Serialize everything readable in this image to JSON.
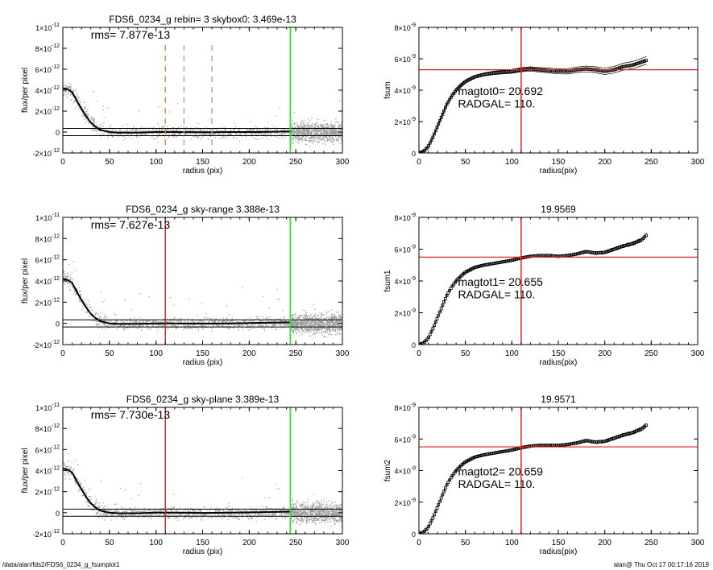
{
  "footer": {
    "path": "/data/alan/fds2/FDS6_0234_g_fsumplot1",
    "stamp": "alan@  Thu Oct 17 00:17:16 2019"
  },
  "colors": {
    "points": "#9a9a9a",
    "profile": "#000000",
    "red": "#dd2222",
    "green": "#33dd33",
    "orange": "#ee8822",
    "dash": "#aaaaaa"
  },
  "chart_data": [
    {
      "type": "scatter",
      "title": "FDS6_0234_g rebin= 3    skybox0:  3.469e-13",
      "annotation": "rms= 7.877e-13",
      "xlabel": "radius (pix)",
      "ylabel": "flux/per pixel",
      "xlim": [
        0,
        300
      ],
      "ylim": [
        -2e-12,
        1e-11
      ],
      "x_ticks": [
        "0",
        "50",
        "100",
        "150",
        "200",
        "250",
        "300"
      ],
      "y_ticks": [
        {
          "v": -2e-12,
          "m": "-2×10",
          "e": "-12"
        },
        {
          "v": 0,
          "m": "0",
          "e": ""
        },
        {
          "v": 2e-12,
          "m": "2×10",
          "e": "-12"
        },
        {
          "v": 4e-12,
          "m": "4×10",
          "e": "-12"
        },
        {
          "v": 6e-12,
          "m": "6×10",
          "e": "-12"
        },
        {
          "v": 8e-12,
          "m": "8×10",
          "e": "-12"
        },
        {
          "v": 1e-11,
          "m": "1×10",
          "e": "-11"
        }
      ],
      "profile": {
        "x": [
          0,
          5,
          10,
          15,
          20,
          25,
          30,
          35,
          40,
          45,
          50,
          60,
          80,
          100,
          120,
          150,
          180,
          210,
          245
        ],
        "y": [
          4.2e-12,
          4.1e-12,
          3.8e-12,
          3e-12,
          2.2e-12,
          1.5e-12,
          9e-13,
          5e-13,
          2e-13,
          1e-13,
          0.0,
          -5e-14,
          -5e-14,
          0.0,
          0.0,
          -2e-14,
          0.0,
          0.0,
          5e-14
        ]
      },
      "hlines": [
        3.469e-13,
        -3.469e-13
      ],
      "vlines": [
        {
          "x": 244,
          "color": "green"
        },
        {
          "x": 110,
          "color": "orange",
          "style": "dashed"
        },
        {
          "x": 130,
          "color": "dash",
          "style": "dashed"
        },
        {
          "x": 160,
          "color": "dash",
          "style": "dashed"
        }
      ]
    },
    {
      "type": "line",
      "title": "",
      "xlabel": "radius(pix)",
      "ylabel": "fsum",
      "xlim": [
        0,
        300
      ],
      "ylim": [
        0,
        8e-09
      ],
      "x_ticks": [
        "0",
        "50",
        "100",
        "150",
        "200",
        "250",
        "300"
      ],
      "y_ticks": [
        {
          "v": 0,
          "m": "0",
          "e": ""
        },
        {
          "v": 2e-09,
          "m": "2×10",
          "e": "-9"
        },
        {
          "v": 4e-09,
          "m": "4×10",
          "e": "-9"
        },
        {
          "v": 6e-09,
          "m": "6×10",
          "e": "-9"
        },
        {
          "v": 8e-09,
          "m": "8×10",
          "e": "-9"
        }
      ],
      "curve": {
        "x": [
          0,
          5,
          10,
          15,
          20,
          25,
          30,
          35,
          40,
          45,
          50,
          60,
          70,
          80,
          90,
          100,
          110,
          120,
          130,
          140,
          150,
          160,
          170,
          180,
          190,
          200,
          210,
          220,
          230,
          240,
          245
        ],
        "y": [
          0,
          1e-10,
          4e-10,
          1e-09,
          1.7e-09,
          2.4e-09,
          3.1e-09,
          3.6e-09,
          4e-09,
          4.3e-09,
          4.55e-09,
          4.85e-09,
          5e-09,
          5.1e-09,
          5.15e-09,
          5.2e-09,
          5.3e-09,
          5.35e-09,
          5.3e-09,
          5.25e-09,
          5.2e-09,
          5.2e-09,
          5.3e-09,
          5.35e-09,
          5.3e-09,
          5.2e-09,
          5.3e-09,
          5.5e-09,
          5.6e-09,
          5.8e-09,
          5.9e-09
        ]
      },
      "band": 2.5e-10,
      "hline": 5.3e-09,
      "vline": 110,
      "magtot": "magtot0=  20.692",
      "radgal": "RADGAL=    110."
    },
    {
      "type": "scatter",
      "title": "FDS6_0234_g sky-range  3.388e-13",
      "annotation": "rms= 7.627e-13",
      "xlabel": "radius (pix)",
      "ylabel": "flux/per pixel",
      "xlim": [
        0,
        300
      ],
      "ylim": [
        -2e-12,
        1e-11
      ],
      "x_ticks": [
        "0",
        "50",
        "100",
        "150",
        "200",
        "250",
        "300"
      ],
      "y_ticks": [
        {
          "v": -2e-12,
          "m": "-2×10",
          "e": "-12"
        },
        {
          "v": 0,
          "m": "0",
          "e": ""
        },
        {
          "v": 2e-12,
          "m": "2×10",
          "e": "-12"
        },
        {
          "v": 4e-12,
          "m": "4×10",
          "e": "-12"
        },
        {
          "v": 6e-12,
          "m": "6×10",
          "e": "-12"
        },
        {
          "v": 8e-12,
          "m": "8×10",
          "e": "-12"
        },
        {
          "v": 1e-11,
          "m": "1×10",
          "e": "-11"
        }
      ],
      "profile": {
        "x": [
          0,
          5,
          10,
          15,
          20,
          25,
          30,
          35,
          40,
          45,
          50,
          60,
          80,
          100,
          120,
          150,
          180,
          210,
          245
        ],
        "y": [
          4.2e-12,
          4.1e-12,
          3.8e-12,
          3e-12,
          2.2e-12,
          1.5e-12,
          9e-13,
          5e-13,
          2e-13,
          1e-13,
          0.0,
          -5e-14,
          -5e-14,
          0.0,
          0.0,
          -2e-14,
          0.0,
          5e-14,
          1e-13
        ]
      },
      "hlines": [
        3.388e-13,
        -3.388e-13
      ],
      "vlines": [
        {
          "x": 244,
          "color": "green"
        },
        {
          "x": 110,
          "color": "red"
        }
      ]
    },
    {
      "type": "line",
      "title": "19.9569",
      "xlabel": "radius(pix)",
      "ylabel": "fsum1",
      "xlim": [
        0,
        300
      ],
      "ylim": [
        0,
        8e-09
      ],
      "x_ticks": [
        "0",
        "50",
        "100",
        "150",
        "200",
        "250",
        "300"
      ],
      "y_ticks": [
        {
          "v": 0,
          "m": "0",
          "e": ""
        },
        {
          "v": 2e-09,
          "m": "2×10",
          "e": "-9"
        },
        {
          "v": 4e-09,
          "m": "4×10",
          "e": "-9"
        },
        {
          "v": 6e-09,
          "m": "6×10",
          "e": "-9"
        },
        {
          "v": 8e-09,
          "m": "8×10",
          "e": "-9"
        }
      ],
      "curve": {
        "x": [
          0,
          5,
          10,
          15,
          20,
          25,
          30,
          35,
          40,
          45,
          50,
          60,
          70,
          80,
          90,
          100,
          110,
          120,
          130,
          140,
          150,
          160,
          170,
          180,
          190,
          200,
          210,
          220,
          230,
          240,
          245
        ],
        "y": [
          0,
          1e-10,
          4e-10,
          1e-09,
          1.7e-09,
          2.4e-09,
          3.1e-09,
          3.6e-09,
          4e-09,
          4.3e-09,
          4.55e-09,
          4.85e-09,
          5e-09,
          5.1e-09,
          5.2e-09,
          5.3e-09,
          5.45e-09,
          5.55e-09,
          5.6e-09,
          5.6e-09,
          5.55e-09,
          5.6e-09,
          5.7e-09,
          5.85e-09,
          5.75e-09,
          5.8e-09,
          6e-09,
          6.2e-09,
          6.35e-09,
          6.6e-09,
          6.9e-09
        ]
      },
      "band": 1.2e-10,
      "hline": 5.5e-09,
      "vline": 110,
      "magtot": "magtot1=  20.655",
      "radgal": "RADGAL=    110."
    },
    {
      "type": "scatter",
      "title": "FDS6_0234_g sky-plane  3.389e-13",
      "annotation": "rms= 7.730e-13",
      "xlabel": "radius (pix)",
      "ylabel": "flux/per pixel",
      "xlim": [
        0,
        300
      ],
      "ylim": [
        -2e-12,
        1e-11
      ],
      "x_ticks": [
        "0",
        "50",
        "100",
        "150",
        "200",
        "250",
        "300"
      ],
      "y_ticks": [
        {
          "v": -2e-12,
          "m": "-2×10",
          "e": "-12"
        },
        {
          "v": 0,
          "m": "0",
          "e": ""
        },
        {
          "v": 2e-12,
          "m": "2×10",
          "e": "-12"
        },
        {
          "v": 4e-12,
          "m": "4×10",
          "e": "-12"
        },
        {
          "v": 6e-12,
          "m": "6×10",
          "e": "-12"
        },
        {
          "v": 8e-12,
          "m": "8×10",
          "e": "-12"
        },
        {
          "v": 1e-11,
          "m": "1×10",
          "e": "-11"
        }
      ],
      "profile": {
        "x": [
          0,
          5,
          10,
          15,
          20,
          25,
          30,
          35,
          40,
          45,
          50,
          60,
          80,
          100,
          120,
          150,
          180,
          210,
          245
        ],
        "y": [
          4.2e-12,
          4.1e-12,
          3.8e-12,
          3e-12,
          2.2e-12,
          1.5e-12,
          9e-13,
          5e-13,
          2e-13,
          1e-13,
          0.0,
          -5e-14,
          -5e-14,
          0.0,
          0.0,
          -2e-14,
          0.0,
          5e-14,
          1e-13
        ]
      },
      "hlines": [
        3.389e-13,
        -3.389e-13
      ],
      "vlines": [
        {
          "x": 244,
          "color": "green"
        },
        {
          "x": 110,
          "color": "red"
        }
      ]
    },
    {
      "type": "line",
      "title": "19.9571",
      "xlabel": "radius(pix)",
      "ylabel": "fsum2",
      "xlim": [
        0,
        300
      ],
      "ylim": [
        0,
        8e-09
      ],
      "x_ticks": [
        "0",
        "50",
        "100",
        "150",
        "200",
        "250",
        "300"
      ],
      "y_ticks": [
        {
          "v": 0,
          "m": "0",
          "e": ""
        },
        {
          "v": 2e-09,
          "m": "2×10",
          "e": "-9"
        },
        {
          "v": 4e-09,
          "m": "4×10",
          "e": "-9"
        },
        {
          "v": 6e-09,
          "m": "6×10",
          "e": "-9"
        },
        {
          "v": 8e-09,
          "m": "8×10",
          "e": "-9"
        }
      ],
      "curve": {
        "x": [
          0,
          5,
          10,
          15,
          20,
          25,
          30,
          35,
          40,
          45,
          50,
          60,
          70,
          80,
          90,
          100,
          110,
          120,
          130,
          140,
          150,
          160,
          170,
          180,
          190,
          200,
          210,
          220,
          230,
          240,
          245
        ],
        "y": [
          0,
          1e-10,
          4e-10,
          1e-09,
          1.7e-09,
          2.4e-09,
          3.1e-09,
          3.6e-09,
          4e-09,
          4.3e-09,
          4.55e-09,
          4.85e-09,
          5e-09,
          5.1e-09,
          5.2e-09,
          5.3e-09,
          5.45e-09,
          5.55e-09,
          5.6e-09,
          5.6e-09,
          5.6e-09,
          5.65e-09,
          5.75e-09,
          5.9e-09,
          5.8e-09,
          5.85e-09,
          6.05e-09,
          6.25e-09,
          6.4e-09,
          6.65e-09,
          6.9e-09
        ]
      },
      "band": 1.2e-10,
      "hline": 5.5e-09,
      "vline": 110,
      "magtot": "magtot2=  20.659",
      "radgal": "RADGAL=    110."
    }
  ]
}
